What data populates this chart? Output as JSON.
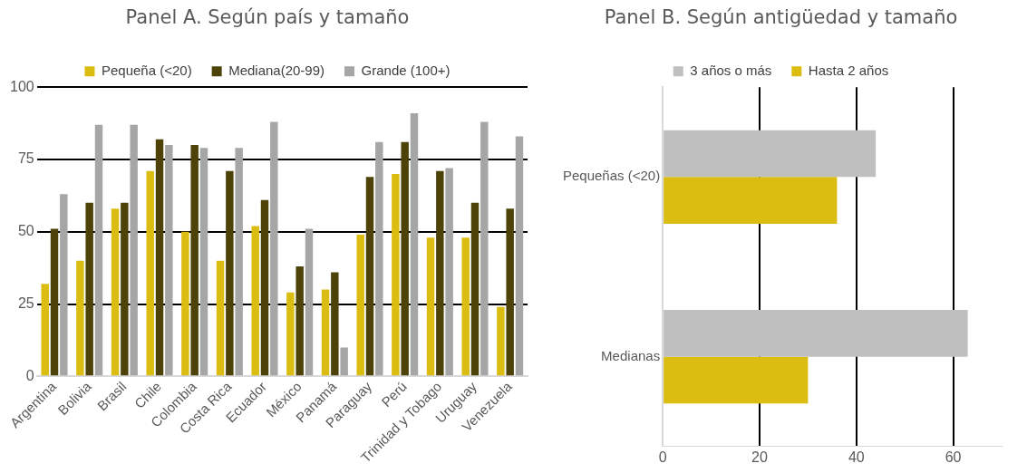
{
  "chart_data": [
    {
      "type": "bar",
      "title": "Panel A. Según país y tamaño",
      "categories": [
        "Argentina",
        "Bolivia",
        "Brasil",
        "Chile",
        "Colombia",
        "Costa Rica",
        "Ecuador",
        "México",
        "Panamá",
        "Paraguay",
        "Perú",
        "Trinidad y Tobago",
        "Uruguay",
        "Venezuela"
      ],
      "series": [
        {
          "name": "Pequeña (<20)",
          "color": "#dbbd12",
          "values": [
            32,
            40,
            58,
            71,
            50,
            40,
            52,
            29,
            30,
            49,
            70,
            48,
            48,
            24
          ]
        },
        {
          "name": "Mediana(20-99)",
          "color": "#4d4208",
          "values": [
            51,
            60,
            60,
            82,
            80,
            71,
            61,
            38,
            36,
            69,
            81,
            71,
            60,
            58
          ]
        },
        {
          "name": "Grande (100+)",
          "color": "#a6a6a6",
          "values": [
            63,
            87,
            87,
            80,
            79,
            79,
            88,
            51,
            10,
            81,
            91,
            72,
            88,
            83
          ]
        }
      ],
      "ylim": [
        0,
        100
      ],
      "yticks": [
        0,
        25,
        50,
        75,
        100
      ],
      "grid": "y",
      "legend": "top"
    },
    {
      "type": "bar",
      "orientation": "horizontal",
      "title": "Panel B. Según antigüedad y tamaño",
      "categories": [
        "Pequeñas (<20)",
        "Medianas"
      ],
      "series": [
        {
          "name": "3 años o más",
          "color": "#bfbfbf",
          "values": [
            44,
            63
          ]
        },
        {
          "name": "Hasta 2 años",
          "color": "#dbbd12",
          "values": [
            36,
            30
          ]
        }
      ],
      "xlim": [
        0,
        70
      ],
      "xticks": [
        0,
        20,
        40,
        60
      ],
      "grid": "x",
      "legend": "top"
    }
  ]
}
